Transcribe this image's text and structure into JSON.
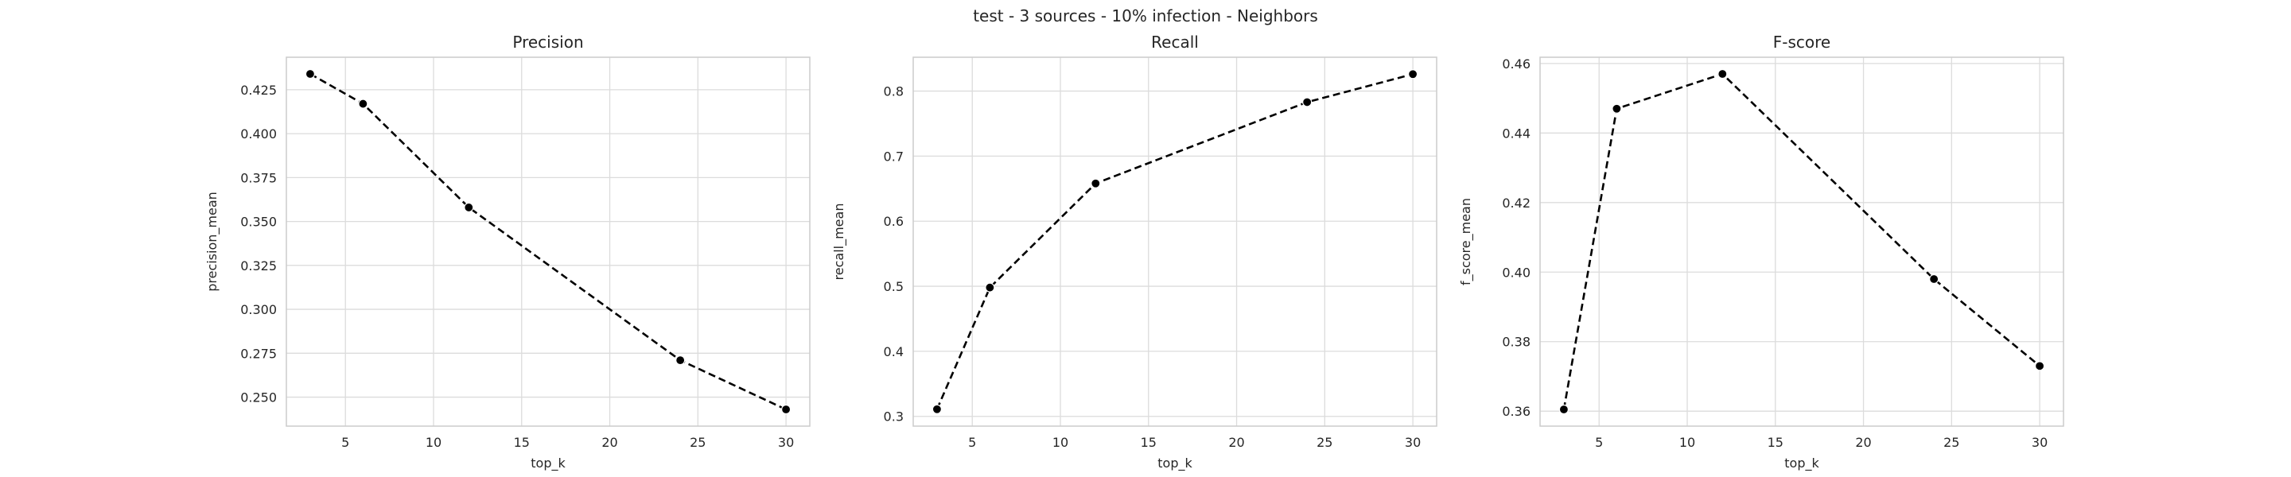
{
  "suptitle": "test - 3 sources - 10% infection - Neighbors",
  "chart_data": [
    {
      "type": "line",
      "title": "Precision",
      "xlabel": "top_k",
      "ylabel": "precision_mean",
      "x": [
        3,
        6,
        12,
        24,
        30
      ],
      "series": [
        {
          "values": [
            0.434,
            0.417,
            0.358,
            0.271,
            0.243
          ],
          "color": "#000000",
          "linestyle": "dashed",
          "marker": "circle"
        }
      ],
      "xlim": [
        1.65,
        31.35
      ],
      "ylim": [
        0.2335,
        0.4435
      ],
      "xticks": [
        5,
        10,
        15,
        20,
        25,
        30
      ],
      "yticks": [
        0.25,
        0.275,
        0.3,
        0.325,
        0.35,
        0.375,
        0.4,
        0.425
      ],
      "ytick_labels": [
        "0.250",
        "0.275",
        "0.300",
        "0.325",
        "0.350",
        "0.375",
        "0.400",
        "0.425"
      ],
      "grid": true
    },
    {
      "type": "line",
      "title": "Recall",
      "xlabel": "top_k",
      "ylabel": "recall_mean",
      "x": [
        3,
        6,
        12,
        24,
        30
      ],
      "series": [
        {
          "values": [
            0.311,
            0.498,
            0.658,
            0.783,
            0.826
          ],
          "color": "#000000",
          "linestyle": "dashed",
          "marker": "circle"
        }
      ],
      "xlim": [
        1.65,
        31.35
      ],
      "ylim": [
        0.285,
        0.852
      ],
      "xticks": [
        5,
        10,
        15,
        20,
        25,
        30
      ],
      "yticks": [
        0.3,
        0.4,
        0.5,
        0.6,
        0.7,
        0.8
      ],
      "ytick_labels": [
        "0.3",
        "0.4",
        "0.5",
        "0.6",
        "0.7",
        "0.8"
      ],
      "grid": true
    },
    {
      "type": "line",
      "title": "F-score",
      "xlabel": "top_k",
      "ylabel": "f_score_mean",
      "x": [
        3,
        6,
        12,
        24,
        30
      ],
      "series": [
        {
          "values": [
            0.3605,
            0.447,
            0.457,
            0.398,
            0.373
          ],
          "color": "#000000",
          "linestyle": "dashed",
          "marker": "circle"
        }
      ],
      "xlim": [
        1.65,
        31.35
      ],
      "ylim": [
        0.3557,
        0.4618
      ],
      "xticks": [
        5,
        10,
        15,
        20,
        25,
        30
      ],
      "yticks": [
        0.36,
        0.38,
        0.4,
        0.42,
        0.44,
        0.46
      ],
      "ytick_labels": [
        "0.36",
        "0.38",
        "0.40",
        "0.42",
        "0.44",
        "0.46"
      ],
      "grid": true
    }
  ]
}
